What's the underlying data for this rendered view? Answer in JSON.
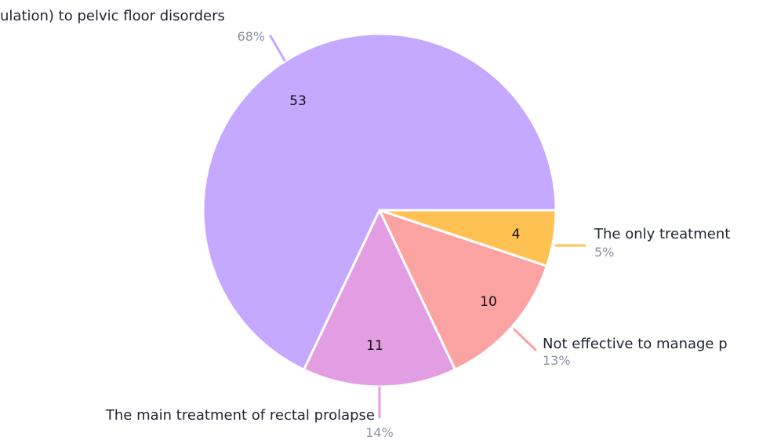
{
  "chart_data": {
    "type": "pie",
    "slices": [
      {
        "label": "ulation) to pelvic floor disorders",
        "value": 53,
        "percent": "68%",
        "color": "#c5a8ff"
      },
      {
        "label": "The only treatment",
        "value": 4,
        "percent": "5%",
        "color": "#ffc152"
      },
      {
        "label": "Not effective to manage p",
        "value": 10,
        "percent": "13%",
        "color": "#fba2a2"
      },
      {
        "label": "The main treatment of rectal prolapse",
        "value": 11,
        "percent": "14%",
        "color": "#e39ee3"
      }
    ],
    "start_angle_deg": 0,
    "direction": "clockwise-from-3-oclock"
  }
}
